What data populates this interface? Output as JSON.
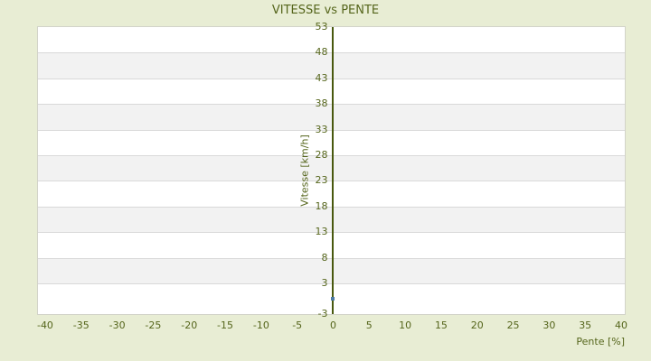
{
  "window": {
    "background_color": "#e8edd4",
    "text_color": "#55651b"
  },
  "chart_data": {
    "type": "scatter",
    "title": "VITESSE vs PENTE",
    "xlabel": "Pente [%]",
    "ylabel": "Vitesse [km/h]",
    "xlim": [
      -41,
      40.5
    ],
    "ylim": [
      -3,
      53
    ],
    "x_ticks": [
      -40,
      -35,
      -30,
      -25,
      -20,
      -15,
      -10,
      -5,
      0,
      5,
      10,
      15,
      20,
      25,
      30,
      35,
      40
    ],
    "y_ticks": [
      53,
      48,
      43,
      38,
      33,
      28,
      23,
      18,
      13,
      8,
      3,
      -3
    ],
    "grid": {
      "horizontal_bands": true,
      "band_colors": [
        "#ffffff",
        "#f2f2f2"
      ],
      "gridline_color": "#d9d9d9"
    },
    "axes": {
      "y_axis_line_at_x": 0,
      "axis_line_color": "#49590f"
    },
    "legend": "none",
    "series": [
      {
        "name": "Vitesse",
        "marker": "square",
        "color": "#4d7ba5",
        "points": [
          [
            0,
            0
          ]
        ]
      }
    ]
  }
}
